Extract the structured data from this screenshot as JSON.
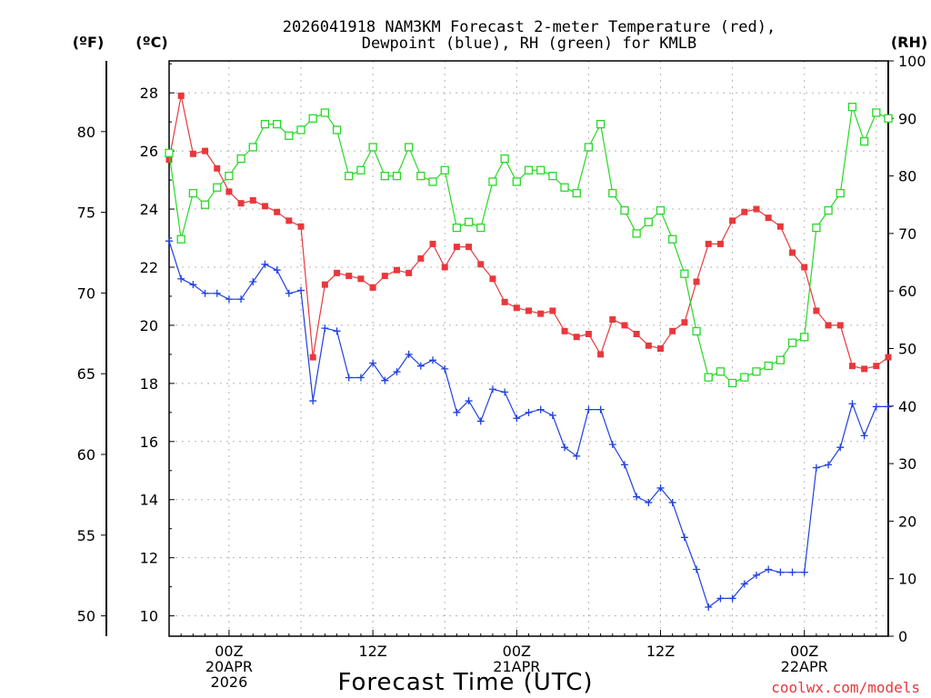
{
  "chart_data": {
    "type": "line",
    "title_line1": "2026041918 NAM3KM Forecast 2-meter Temperature (red),",
    "title_line2": "Dewpoint (blue), RH (green) for KMLB",
    "xlabel": "Forecast Time (UTC)",
    "credit": "coolwx.com/models",
    "unit_labels": {
      "fahrenheit": "(ºF)",
      "celsius": "(ºC)",
      "rh": "(RH)"
    },
    "x_start_hour": 19,
    "x_end_hour": 79,
    "grid": true,
    "y_left_c": {
      "range": [
        9.3,
        29.1
      ],
      "ticks": [
        "10",
        "12",
        "14",
        "16",
        "18",
        "20",
        "22",
        "24",
        "26",
        "28"
      ]
    },
    "y_left_f": {
      "ticks": [
        "50",
        "55",
        "60",
        "65",
        "70",
        "75",
        "80"
      ]
    },
    "y_right_rh": {
      "range": [
        0,
        100
      ],
      "ticks": [
        "0",
        "10",
        "20",
        "30",
        "40",
        "50",
        "60",
        "70",
        "80",
        "90",
        "100"
      ]
    },
    "x_ticks": [
      {
        "hour": 24,
        "lines": [
          "00Z",
          "20APR",
          "2026"
        ]
      },
      {
        "hour": 36,
        "lines": [
          "12Z"
        ]
      },
      {
        "hour": 48,
        "lines": [
          "00Z",
          "21APR"
        ]
      },
      {
        "hour": 60,
        "lines": [
          "12Z"
        ]
      },
      {
        "hour": 72,
        "lines": [
          "00Z",
          "22APR"
        ]
      }
    ],
    "colors": {
      "temperature": "#e8383c",
      "dewpoint": "#2040e0",
      "rh": "#28d828",
      "grid": "#b4b4b4"
    },
    "series": [
      {
        "key": "temperature",
        "axis": "celsius",
        "marker": "filled-square",
        "values": [
          25.7,
          27.9,
          25.9,
          26.0,
          25.4,
          24.6,
          24.2,
          24.3,
          24.1,
          23.9,
          23.6,
          23.4,
          18.9,
          21.4,
          21.8,
          21.7,
          21.6,
          21.3,
          21.7,
          21.9,
          21.8,
          22.3,
          22.8,
          22.0,
          22.7,
          22.7,
          22.1,
          21.6,
          20.8,
          20.6,
          20.5,
          20.4,
          20.5,
          19.8,
          19.6,
          19.7,
          19.0,
          20.2,
          20.0,
          19.7,
          19.3,
          19.2,
          19.8,
          20.1,
          21.5,
          22.8,
          22.8,
          23.6,
          23.9,
          24.0,
          23.7,
          23.4,
          22.5,
          22.0,
          20.5,
          20.0,
          20.0,
          18.6,
          18.5,
          18.6,
          18.9
        ]
      },
      {
        "key": "dewpoint",
        "axis": "celsius",
        "marker": "plus",
        "values": [
          22.9,
          21.6,
          21.4,
          21.1,
          21.1,
          20.9,
          20.9,
          21.5,
          22.1,
          21.9,
          21.1,
          21.2,
          17.4,
          19.9,
          19.8,
          18.2,
          18.2,
          18.7,
          18.1,
          18.4,
          19.0,
          18.6,
          18.8,
          18.5,
          17.0,
          17.4,
          16.7,
          17.8,
          17.7,
          16.8,
          17.0,
          17.1,
          16.9,
          15.8,
          15.5,
          17.1,
          17.1,
          15.9,
          15.2,
          14.1,
          13.9,
          14.4,
          13.9,
          12.7,
          11.6,
          10.3,
          10.6,
          10.6,
          11.1,
          11.4,
          11.6,
          11.5,
          11.5,
          11.5,
          15.1,
          15.2,
          15.8,
          17.3,
          16.2,
          17.2,
          17.2
        ]
      },
      {
        "key": "rh",
        "axis": "rh",
        "marker": "open-square",
        "values": [
          84,
          69,
          77,
          75,
          78,
          80,
          83,
          85,
          89,
          89,
          87,
          88,
          90,
          91,
          88,
          80,
          81,
          85,
          80,
          80,
          85,
          80,
          79,
          81,
          71,
          72,
          71,
          79,
          83,
          79,
          81,
          81,
          80,
          78,
          77,
          85,
          89,
          77,
          74,
          70,
          72,
          74,
          69,
          63,
          53,
          45,
          46,
          44,
          45,
          46,
          47,
          48,
          51,
          52,
          71,
          74,
          77,
          92,
          86,
          91,
          90
        ]
      }
    ]
  }
}
